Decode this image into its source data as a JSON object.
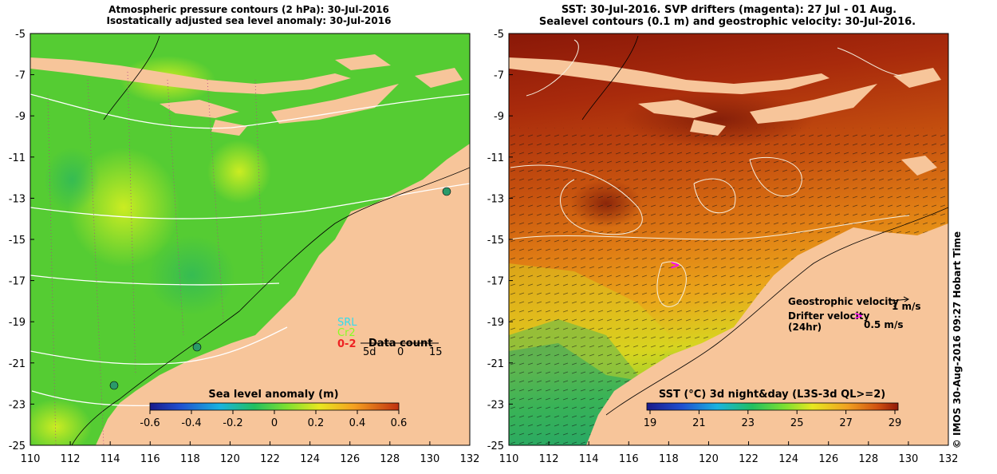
{
  "left_panel": {
    "title_line1": "Atmospheric pressure contours (2 hPa): 30-Jul-2016",
    "title_line2": "Isostatically adjusted sea level anomaly: 30-Jul-2016",
    "legend": {
      "srl": "SRL",
      "cr2": "Cr2",
      "val": "0-2",
      "data_count": "Data count",
      "count_ticks": [
        "5d",
        "0",
        "15"
      ]
    },
    "colorbar": {
      "title": "Sea level anomaly (m)",
      "ticks": [
        "-0.6",
        "-0.4",
        "-0.2",
        "0",
        "0.2",
        "0.4",
        "0.6"
      ]
    }
  },
  "right_panel": {
    "title_line1": "SST: 30-Jul-2016. SVP drifters (magenta): 27 Jul - 01 Aug.",
    "title_line2": "Sealevel contours (0.1 m) and geostrophic velocity: 30-Jul-2016.",
    "legend": {
      "geostrophic_label": "Geostrophic velocity",
      "geostrophic_value": "1 m/s",
      "drifter_label": "Drifter velocity",
      "drifter_sub": "(24hr)",
      "drifter_symbol": ">",
      "drifter_value": "0.5 m/s"
    },
    "colorbar": {
      "title": "SST (°C) 3d night&day (L3S-3d QL>=2)",
      "ticks": [
        "19",
        "21",
        "23",
        "25",
        "27",
        "29"
      ]
    }
  },
  "axes": {
    "x_ticks": [
      "110",
      "112",
      "114",
      "116",
      "118",
      "120",
      "122",
      "124",
      "126",
      "128",
      "130",
      "132"
    ],
    "y_ticks": [
      "-5",
      "-7",
      "-9",
      "-11",
      "-13",
      "-15",
      "-17",
      "-19",
      "-21",
      "-23",
      "-25"
    ]
  },
  "credit": "© IMOS 30-Aug-2016 09:27 Hobart Time",
  "colors": {
    "land": "#f7c59a",
    "sla_ocean": "#55cc33",
    "sst_warm": "#c94a10",
    "sst_cool": "#2eb84a",
    "drifter": "#ff00ff"
  }
}
